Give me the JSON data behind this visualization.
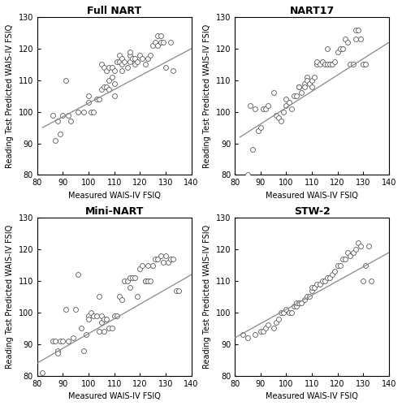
{
  "panels": [
    {
      "title": "Full NART",
      "x": [
        86,
        87,
        88,
        89,
        90,
        91,
        92,
        93,
        96,
        98,
        100,
        100,
        101,
        102,
        103,
        104,
        105,
        105,
        106,
        106,
        107,
        107,
        108,
        108,
        108,
        109,
        109,
        110,
        110,
        110,
        111,
        112,
        112,
        113,
        113,
        113,
        114,
        115,
        116,
        116,
        116,
        117,
        118,
        118,
        119,
        120,
        121,
        122,
        123,
        124,
        125,
        126,
        127,
        127,
        128,
        128,
        129,
        130,
        132,
        133
      ],
      "y": [
        99,
        91,
        97,
        93,
        99,
        110,
        99,
        97,
        100,
        100,
        105,
        103,
        100,
        100,
        104,
        104,
        107,
        115,
        108,
        114,
        108,
        113,
        114,
        110,
        107,
        114,
        111,
        109,
        113,
        105,
        116,
        118,
        116,
        115,
        113,
        117,
        116,
        114,
        116,
        118,
        119,
        117,
        115,
        117,
        116,
        118,
        117,
        115,
        117,
        118,
        121,
        122,
        124,
        121,
        122,
        124,
        122,
        114,
        122,
        113
      ],
      "fit_x": [
        82,
        140
      ],
      "fit_y": [
        95,
        120
      ]
    },
    {
      "title": "NART17",
      "x": [
        85,
        86,
        87,
        88,
        89,
        90,
        91,
        92,
        93,
        95,
        96,
        97,
        98,
        99,
        100,
        100,
        101,
        102,
        103,
        104,
        105,
        105,
        106,
        107,
        107,
        108,
        108,
        109,
        110,
        110,
        111,
        112,
        112,
        113,
        114,
        115,
        116,
        116,
        117,
        118,
        119,
        120,
        121,
        122,
        123,
        124,
        125,
        126,
        127,
        127,
        128,
        129,
        130,
        131
      ],
      "y": [
        80,
        102,
        88,
        101,
        94,
        95,
        101,
        101,
        102,
        106,
        99,
        98,
        97,
        100,
        104,
        102,
        103,
        101,
        105,
        105,
        108,
        108,
        106,
        109,
        108,
        111,
        110,
        109,
        110,
        108,
        111,
        115,
        116,
        115,
        116,
        115,
        115,
        120,
        115,
        115,
        116,
        119,
        120,
        120,
        123,
        122,
        115,
        115,
        123,
        126,
        126,
        123,
        115,
        115
      ],
      "fit_x": [
        82,
        140
      ],
      "fit_y": [
        92,
        122
      ]
    },
    {
      "title": "Mini-NART",
      "x": [
        82,
        86,
        87,
        88,
        88,
        89,
        90,
        91,
        92,
        94,
        95,
        96,
        97,
        98,
        99,
        100,
        100,
        101,
        102,
        103,
        104,
        104,
        105,
        105,
        106,
        106,
        107,
        108,
        109,
        110,
        111,
        112,
        113,
        114,
        115,
        116,
        116,
        117,
        118,
        119,
        120,
        121,
        122,
        122,
        123,
        123,
        124,
        125,
        126,
        127,
        128,
        129,
        130,
        131,
        132,
        133,
        134,
        135
      ],
      "y": [
        81,
        91,
        91,
        88,
        87,
        91,
        91,
        101,
        91,
        92,
        101,
        112,
        95,
        88,
        93,
        99,
        98,
        100,
        99,
        99,
        94,
        105,
        99,
        97,
        98,
        94,
        98,
        95,
        95,
        99,
        99,
        105,
        104,
        110,
        110,
        111,
        108,
        111,
        111,
        105,
        114,
        115,
        110,
        110,
        110,
        115,
        110,
        115,
        117,
        117,
        118,
        116,
        118,
        116,
        117,
        117,
        107,
        107
      ],
      "fit_x": [
        80,
        140
      ],
      "fit_y": [
        84,
        112
      ]
    },
    {
      "title": "STW-2",
      "x": [
        83,
        85,
        88,
        90,
        91,
        92,
        93,
        95,
        96,
        97,
        98,
        99,
        100,
        101,
        102,
        103,
        104,
        104,
        105,
        106,
        107,
        108,
        109,
        110,
        110,
        111,
        112,
        113,
        114,
        115,
        116,
        117,
        118,
        119,
        120,
        121,
        122,
        123,
        124,
        125,
        126,
        127,
        128,
        129,
        130,
        131,
        132,
        133
      ],
      "y": [
        93,
        92,
        93,
        94,
        94,
        95,
        96,
        95,
        97,
        98,
        100,
        100,
        101,
        100,
        100,
        102,
        102,
        103,
        103,
        103,
        104,
        105,
        105,
        107,
        108,
        108,
        109,
        109,
        110,
        110,
        111,
        111,
        112,
        113,
        115,
        115,
        117,
        117,
        119,
        118,
        119,
        120,
        122,
        121,
        110,
        115,
        121,
        110
      ],
      "fit_x": [
        80,
        140
      ],
      "fit_y": [
        92,
        119
      ]
    }
  ],
  "xlim": [
    80,
    140
  ],
  "ylim": [
    80,
    130
  ],
  "xticks": [
    80,
    90,
    100,
    110,
    120,
    130,
    140
  ],
  "yticks": [
    80,
    90,
    100,
    110,
    120,
    130
  ],
  "xlabel": "Measured WAIS-IV FSIQ",
  "ylabel": "Reading Test Predicted WAIS-IV FSIQ",
  "hull_color": "#d4d800",
  "hull_alpha": 0.65,
  "hull_edge_color": "#7a7a00",
  "scatter_facecolor": "white",
  "scatter_edgecolor": "#555555",
  "scatter_size": 18,
  "line_color": "#888888",
  "line_width": 0.9,
  "title_fontsize": 9,
  "label_fontsize": 7,
  "tick_fontsize": 7,
  "figsize": [
    4.95,
    5.0
  ],
  "dpi": 100
}
